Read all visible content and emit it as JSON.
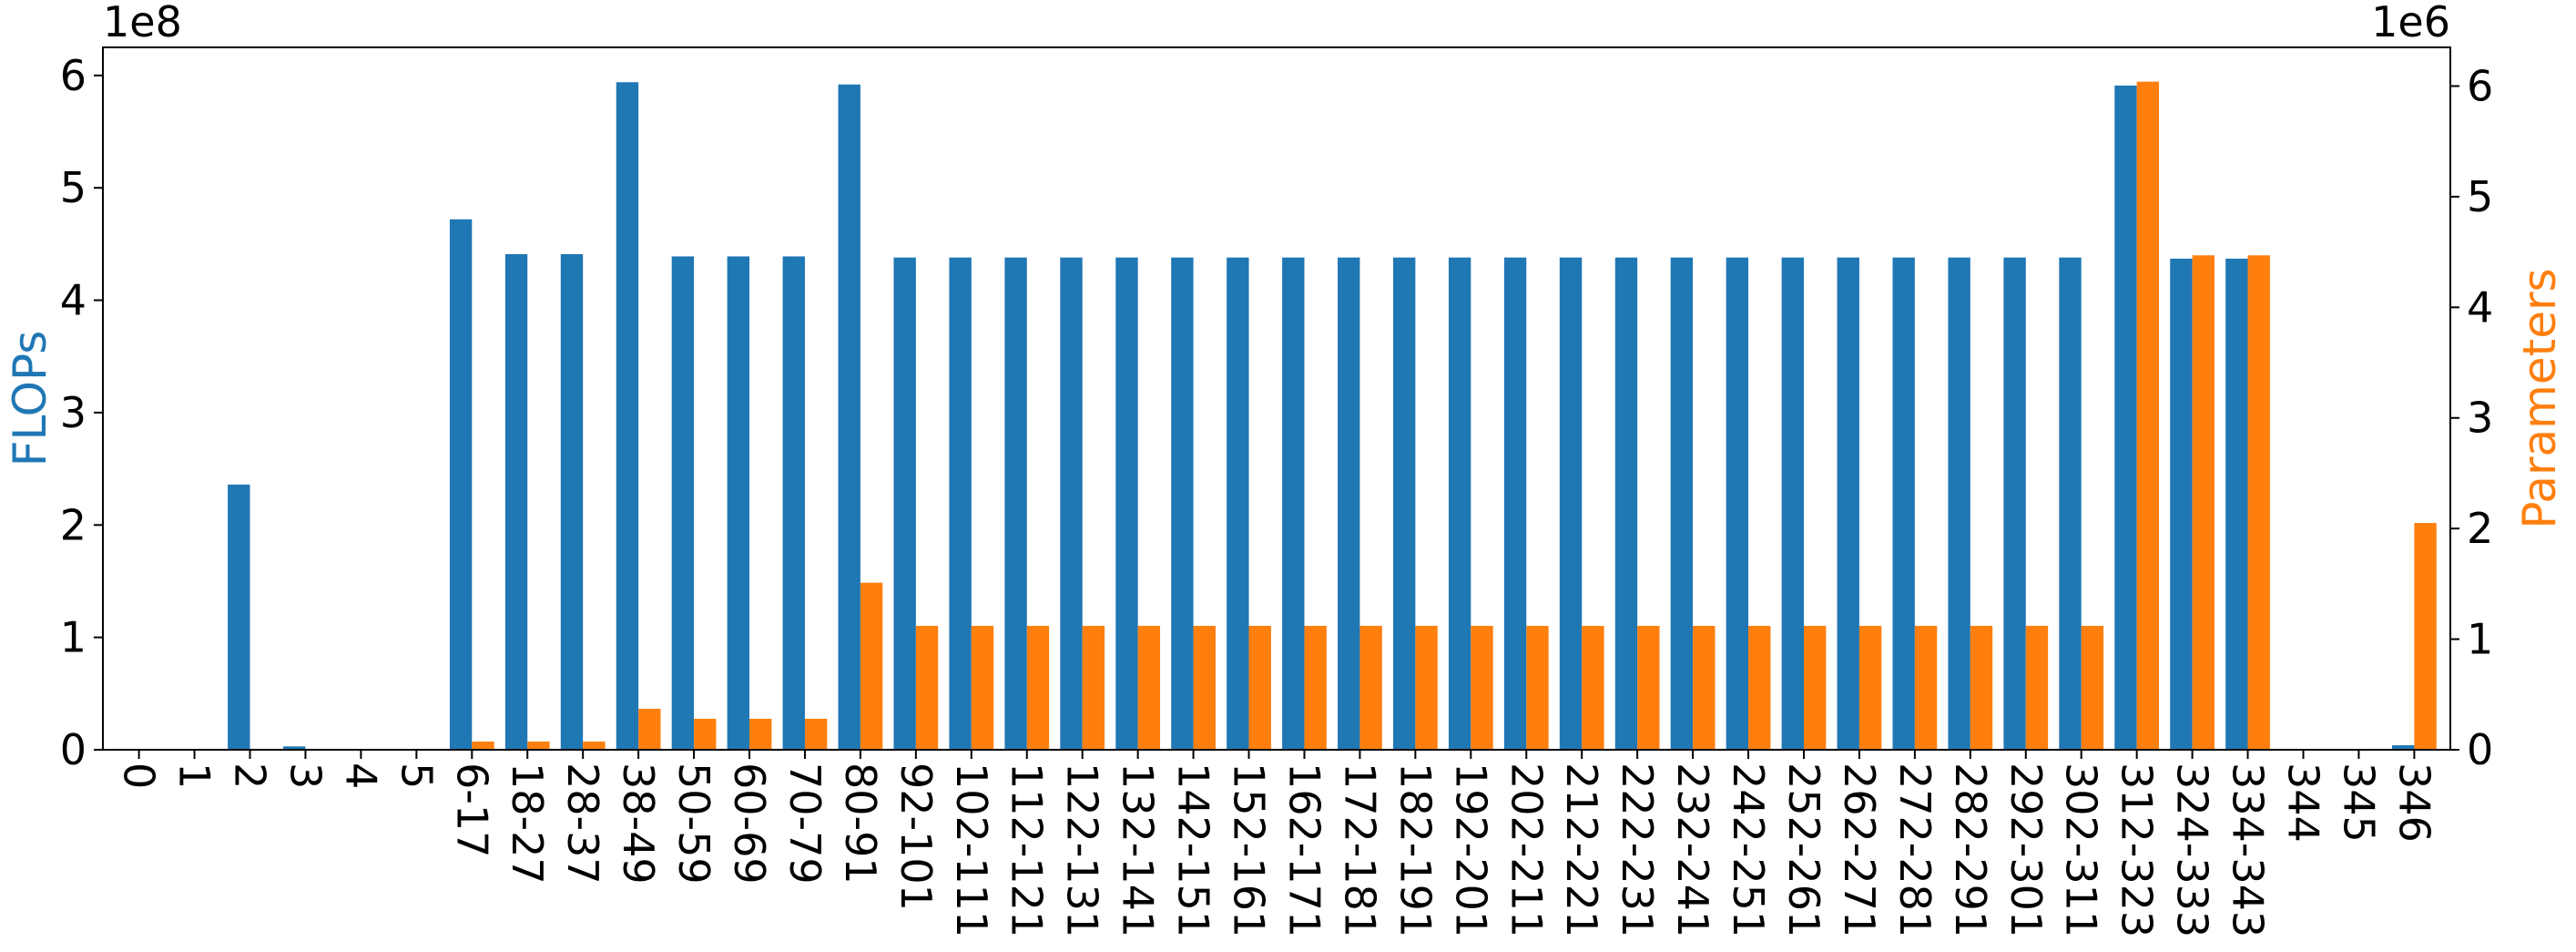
{
  "chart_data": {
    "type": "bar",
    "categories": [
      "0",
      "1",
      "2",
      "3",
      "4",
      "5",
      "6-17",
      "18-27",
      "28-37",
      "38-49",
      "50-59",
      "60-69",
      "70-79",
      "80-91",
      "92-101",
      "102-111",
      "112-121",
      "122-131",
      "132-141",
      "142-151",
      "152-161",
      "162-171",
      "172-181",
      "182-191",
      "192-201",
      "202-211",
      "212-221",
      "222-231",
      "232-241",
      "242-251",
      "252-261",
      "262-271",
      "272-281",
      "282-291",
      "292-301",
      "302-311",
      "312-323",
      "324-333",
      "334-343",
      "344",
      "345",
      "346"
    ],
    "series": [
      {
        "name": "FLOPs",
        "axis": "left",
        "color": "#1f77b4",
        "values": [
          0,
          0,
          236000000,
          3000000,
          0,
          0,
          472000000,
          441000000,
          441000000,
          594000000,
          439000000,
          439000000,
          439000000,
          592000000,
          438000000,
          438000000,
          438000000,
          438000000,
          438000000,
          438000000,
          438000000,
          438000000,
          438000000,
          438000000,
          438000000,
          438000000,
          438000000,
          438000000,
          438000000,
          438000000,
          438000000,
          438000000,
          438000000,
          438000000,
          438000000,
          438000000,
          591000000,
          437000000,
          437000000,
          0,
          0,
          4000000
        ]
      },
      {
        "name": "Parameters",
        "axis": "right",
        "color": "#ff7f0e",
        "values": [
          0,
          0,
          0,
          0,
          0,
          0,
          74000,
          74000,
          74000,
          370000,
          280000,
          280000,
          280000,
          1510000,
          1120000,
          1120000,
          1120000,
          1120000,
          1120000,
          1120000,
          1120000,
          1120000,
          1120000,
          1120000,
          1120000,
          1120000,
          1120000,
          1120000,
          1120000,
          1120000,
          1120000,
          1120000,
          1120000,
          1120000,
          1120000,
          1120000,
          6040000,
          4470000,
          4470000,
          0,
          0,
          2050000
        ]
      }
    ],
    "left_axis": {
      "label": "FLOPs",
      "ylim": [
        0,
        625000000
      ],
      "ticks": [
        0,
        100000000,
        200000000,
        300000000,
        400000000,
        500000000,
        600000000
      ],
      "tick_labels": [
        "0",
        "1",
        "2",
        "3",
        "4",
        "5",
        "6"
      ],
      "multiplier": "1e8",
      "label_color": "#1f77b4"
    },
    "right_axis": {
      "label": "Parameters",
      "ylim": [
        0,
        6350000
      ],
      "ticks": [
        0,
        1000000,
        2000000,
        3000000,
        4000000,
        5000000,
        6000000
      ],
      "tick_labels": [
        "0",
        "1",
        "2",
        "3",
        "4",
        "5",
        "6"
      ],
      "multiplier": "1e6",
      "label_color": "#ff7f0e"
    },
    "xtick_rotation": -90,
    "grid": false,
    "legend": "none"
  }
}
